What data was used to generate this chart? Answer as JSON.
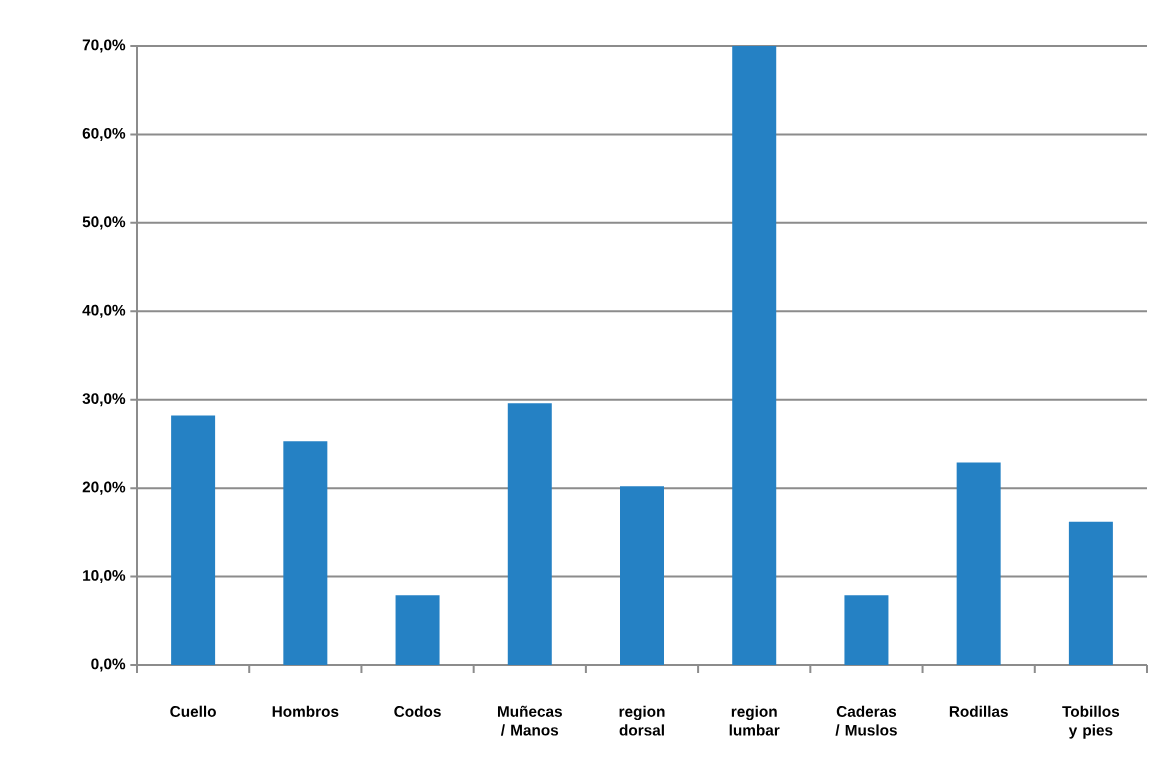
{
  "chart_data": {
    "type": "bar",
    "categories": [
      "Cuello",
      "Hombros",
      "Codos",
      "Muñecas / Manos",
      "region dorsal",
      "region lumbar",
      "Caderas / Muslos",
      "Rodillas",
      "Tobillos y pies"
    ],
    "values": [
      28.2,
      25.3,
      7.9,
      29.6,
      20.2,
      70.0,
      7.9,
      22.9,
      16.2
    ],
    "color": "#2581c4",
    "ylim": [
      0,
      70
    ],
    "yticks": [
      {
        "value": 0,
        "label": "0,0%"
      },
      {
        "value": 10,
        "label": "10,0%"
      },
      {
        "value": 20,
        "label": "20,0%"
      },
      {
        "value": 30,
        "label": "30,0%"
      },
      {
        "value": 40,
        "label": "40,0%"
      },
      {
        "value": 50,
        "label": "50,0%"
      },
      {
        "value": 60,
        "label": "60,0%"
      },
      {
        "value": 70,
        "label": "70,0%"
      }
    ],
    "grid": "y"
  }
}
